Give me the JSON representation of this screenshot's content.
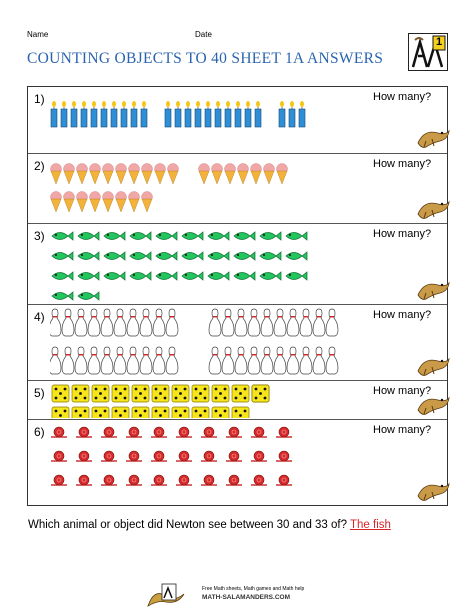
{
  "header": {
    "name_label": "Name",
    "date_label": "Date",
    "title": "COUNTING OBJECTS TO 40 SHEET 1A ANSWERS",
    "logo_number": "1"
  },
  "questions": [
    {
      "number": "1)",
      "prompt": "How many?",
      "object": "candle",
      "count": 23
    },
    {
      "number": "2)",
      "prompt": "How many?",
      "object": "ice-cream-cone",
      "count": 25
    },
    {
      "number": "3)",
      "prompt": "How many?",
      "object": "fish",
      "count": 32
    },
    {
      "number": "4)",
      "prompt": "How many?",
      "object": "bowling-pin",
      "count": 40
    },
    {
      "number": "5)",
      "prompt": "How many?",
      "object": "die",
      "count": 34
    },
    {
      "number": "6)",
      "prompt": "How many?",
      "object": "snail",
      "count": 30
    }
  ],
  "final_question": {
    "text": "Which animal or object did Newton see between 30 and 33 of?",
    "answer": "The fish"
  },
  "footer": {
    "line1": "Free Math sheets, Math games and Math help",
    "line2": "MATH-SALAMANDERS.COM"
  },
  "colors": {
    "title": "#2a64b0",
    "answer": "#d9262c",
    "candle": "#2f8fd6",
    "fish": "#22c55e",
    "die": "#f5e51a",
    "snail": "#d62a2a"
  }
}
